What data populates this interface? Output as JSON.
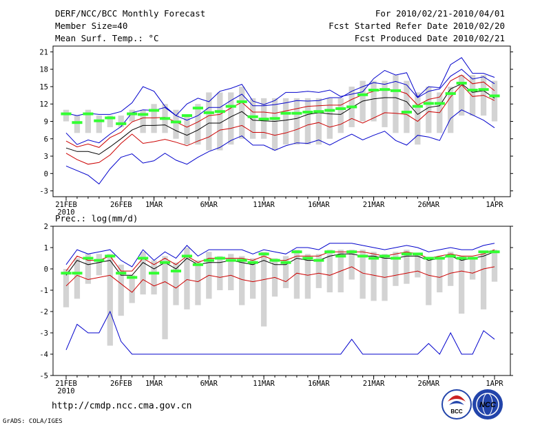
{
  "header": {
    "title": "DERF/NCC/BCC Monthly Forecast",
    "member_size": "Member Size=40",
    "variable": "Mean Surf. Temp.: °C",
    "forecast_for": "For 2010/02/21-2010/04/01",
    "started_refer": "Fcst Started Refer Date 2010/02/20",
    "produced": "Fcst Produced Date 2010/02/21"
  },
  "footer": {
    "url": "http://cmdp.ncc.cma.gov.cn",
    "credit": "GrADS: COLA/IGES",
    "logo_bcc": "BCC",
    "logo_ncc": "NCC"
  },
  "colors": {
    "box": "#d3d3d3",
    "obs": "#33ff33",
    "mean": "#000000",
    "inner": "#cc0000",
    "outer": "#0000cc",
    "frame": "#000000",
    "logo_red": "#cc2222",
    "logo_blue": "#2244aa"
  },
  "chart_data": [
    {
      "type": "box-line",
      "title": "Mean Surf. Temp.: °C",
      "ylim": [
        -4,
        22
      ],
      "yticks": [
        -3,
        0,
        3,
        6,
        9,
        12,
        15,
        18,
        21
      ],
      "x_ticks": [
        {
          "day": 0,
          "label": "21FEB",
          "sub": "2010"
        },
        {
          "day": 5,
          "label": "26FEB"
        },
        {
          "day": 8,
          "label": "1MAR"
        },
        {
          "day": 13,
          "label": "6MAR"
        },
        {
          "day": 18,
          "label": "11MAR"
        },
        {
          "day": 23,
          "label": "16MAR"
        },
        {
          "day": 28,
          "label": "21MAR"
        },
        {
          "day": 33,
          "label": "26MAR"
        },
        {
          "day": 39,
          "label": "1APR"
        }
      ],
      "days": 40,
      "series": [
        {
          "name": "max",
          "role": "outer",
          "values": [
            1.3,
            0.5,
            -0.3,
            -1.8,
            0.8,
            2.8,
            3.4,
            1.8,
            2.2,
            3.5,
            2.3,
            1.6,
            2.8,
            3.8,
            4.5,
            5.7,
            6.5,
            4.9,
            4.9,
            4.0,
            4.8,
            5.3,
            5.2,
            5.8,
            4.9,
            5.9,
            6.8,
            5.8,
            6.6,
            7.3,
            5.7,
            4.9,
            6.6,
            6.3,
            5.7,
            9.5,
            11.0,
            10.1,
            9.2,
            7.9
          ]
        },
        {
          "name": "p25",
          "role": "inner",
          "values": [
            3.5,
            2.4,
            1.6,
            1.9,
            3.2,
            5.2,
            6.8,
            5.2,
            5.5,
            5.9,
            5.4,
            4.8,
            5.6,
            6.3,
            7.5,
            7.8,
            8.3,
            7.1,
            7.1,
            6.6,
            7.0,
            7.6,
            8.4,
            8.8,
            8.0,
            8.5,
            9.5,
            8.7,
            9.6,
            10.5,
            10.4,
            10.2,
            9.0,
            10.7,
            10.5,
            13.2,
            15.3,
            13.3,
            13.5,
            12.6
          ]
        },
        {
          "name": "mean",
          "role": "mean",
          "values": [
            4.4,
            3.8,
            3.8,
            3.3,
            4.6,
            6.0,
            7.5,
            8.3,
            8.3,
            8.4,
            7.4,
            6.6,
            7.5,
            8.7,
            8.7,
            9.8,
            10.7,
            9.2,
            9.1,
            9.0,
            9.2,
            9.5,
            10.2,
            10.5,
            10.3,
            10.2,
            11.4,
            12.5,
            12.9,
            13.1,
            13.1,
            12.4,
            10.2,
            11.4,
            11.7,
            14.6,
            15.5,
            14.0,
            14.3,
            13.0
          ]
        },
        {
          "name": "p75",
          "role": "inner",
          "values": [
            5.6,
            4.6,
            5.1,
            4.5,
            6.2,
            7.1,
            8.9,
            9.6,
            9.6,
            9.7,
            8.9,
            8.0,
            8.9,
            10.0,
            10.2,
            11.3,
            12.3,
            10.6,
            10.6,
            10.4,
            10.8,
            11.2,
            11.6,
            11.7,
            11.8,
            11.8,
            12.8,
            13.6,
            14.2,
            14.5,
            14.4,
            13.8,
            11.8,
            12.8,
            13.2,
            16.0,
            17.0,
            15.5,
            15.8,
            14.3
          ]
        },
        {
          "name": "min",
          "role": "outer",
          "values": [
            7.0,
            5.0,
            5.8,
            5.3,
            6.8,
            8.1,
            10.5,
            11.0,
            10.9,
            11.4,
            10.0,
            9.2,
            10.0,
            11.4,
            11.4,
            12.6,
            13.7,
            11.7,
            11.7,
            11.9,
            12.2,
            12.6,
            12.5,
            12.6,
            13.1,
            13.1,
            14.2,
            15.0,
            15.7,
            15.4,
            15.9,
            15.3,
            13.1,
            14.2,
            14.6,
            16.8,
            18.0,
            16.3,
            16.7,
            15.5
          ]
        },
        {
          "name": "top",
          "role": "outer",
          "values": [
            10.4,
            10.0,
            10.4,
            10.2,
            10.2,
            10.7,
            12.2,
            15.0,
            14.2,
            11.6,
            10.0,
            12.0,
            13.0,
            12.4,
            14.2,
            14.7,
            15.4,
            12.5,
            11.9,
            12.6,
            14.0,
            14.0,
            14.2,
            14.0,
            14.4,
            13.3,
            13.7,
            14.1,
            16.4,
            17.8,
            17.0,
            17.4,
            13.2,
            15.0,
            14.8,
            18.8,
            20.0,
            17.3,
            17.3,
            16.6
          ]
        }
      ],
      "boxes": [
        [
          9,
          11
        ],
        [
          7,
          10
        ],
        [
          7,
          11
        ],
        [
          7,
          10
        ],
        [
          8,
          10
        ],
        [
          8,
          10
        ],
        [
          9,
          11
        ],
        [
          7,
          11
        ],
        [
          7,
          12
        ],
        [
          7,
          12
        ],
        [
          6,
          11
        ],
        [
          5,
          10
        ],
        [
          5,
          12
        ],
        [
          4,
          14
        ],
        [
          4,
          14
        ],
        [
          5,
          14
        ],
        [
          6,
          15
        ],
        [
          6,
          13
        ],
        [
          6,
          13
        ],
        [
          4,
          13
        ],
        [
          5,
          13
        ],
        [
          5,
          13
        ],
        [
          5,
          13
        ],
        [
          5,
          13
        ],
        [
          6,
          13
        ],
        [
          7,
          13
        ],
        [
          8,
          15
        ],
        [
          9,
          16
        ],
        [
          9,
          16
        ],
        [
          8,
          16
        ],
        [
          7,
          17
        ],
        [
          7,
          16
        ],
        [
          5,
          14
        ],
        [
          7,
          15
        ],
        [
          7,
          14
        ],
        [
          7,
          15
        ],
        [
          10,
          17
        ],
        [
          10,
          17
        ],
        [
          10,
          17
        ],
        [
          9,
          16
        ]
      ],
      "observed": [
        10.3,
        8.8,
        10.3,
        9.1,
        9.6,
        8.6,
        10.3,
        10.2,
        10.9,
        9.5,
        8.9,
        10.0,
        11.3,
        10.5,
        10.7,
        11.6,
        12.4,
        9.8,
        9.4,
        9.5,
        10.4,
        10.4,
        10.6,
        10.7,
        10.9,
        11.2,
        11.5,
        13.6,
        14.4,
        14.5,
        14.3,
        10.6,
        11.6,
        12.1,
        12.1,
        13.8,
        15.6,
        14.4,
        14.5,
        13.4
      ]
    },
    {
      "type": "box-line",
      "title": "Prec.: log(mm/d)",
      "ylim": [
        -5,
        2
      ],
      "yticks": [
        -5,
        -4,
        -3,
        -2,
        -1,
        0,
        1,
        2
      ],
      "x_ticks": [
        {
          "day": 0,
          "label": "21FEB",
          "sub": "2010"
        },
        {
          "day": 5,
          "label": "26FEB"
        },
        {
          "day": 8,
          "label": "1MAR"
        },
        {
          "day": 13,
          "label": "6MAR"
        },
        {
          "day": 18,
          "label": "11MAR"
        },
        {
          "day": 23,
          "label": "16MAR"
        },
        {
          "day": 28,
          "label": "21MAR"
        },
        {
          "day": 33,
          "label": "26MAR"
        },
        {
          "day": 39,
          "label": "1APR"
        }
      ],
      "days": 40,
      "series": [
        {
          "name": "min",
          "role": "outer",
          "values": [
            -3.8,
            -2.6,
            -3.0,
            -3.0,
            -2.0,
            -3.4,
            -4.0,
            -4.0,
            -4.0,
            -4.0,
            -4.0,
            -4.0,
            -4.0,
            -4.0,
            -4.0,
            -4.0,
            -4.0,
            -4.0,
            -4.0,
            -4.0,
            -4.0,
            -4.0,
            -4.0,
            -4.0,
            -4.0,
            -4.0,
            -3.3,
            -4.0,
            -4.0,
            -4.0,
            -4.0,
            -4.0,
            -4.0,
            -3.5,
            -4.0,
            -3.0,
            -4.0,
            -4.0,
            -2.9,
            -3.3
          ]
        },
        {
          "name": "p25",
          "role": "inner",
          "values": [
            -0.8,
            -0.3,
            -0.5,
            -0.4,
            -0.3,
            -0.7,
            -1.1,
            -0.5,
            -0.8,
            -0.6,
            -0.9,
            -0.5,
            -0.6,
            -0.3,
            -0.4,
            -0.3,
            -0.5,
            -0.6,
            -0.5,
            -0.4,
            -0.6,
            -0.2,
            -0.3,
            -0.2,
            -0.3,
            -0.1,
            0.1,
            -0.2,
            -0.3,
            -0.4,
            -0.3,
            -0.2,
            -0.1,
            -0.3,
            -0.4,
            -0.2,
            -0.1,
            -0.2,
            0.0,
            0.1
          ]
        },
        {
          "name": "mean",
          "role": "mean",
          "values": [
            -0.3,
            0.4,
            0.2,
            0.3,
            0.4,
            -0.3,
            -0.3,
            0.3,
            0.0,
            0.3,
            0.0,
            0.5,
            0.2,
            0.3,
            0.3,
            0.4,
            0.3,
            0.2,
            0.4,
            0.2,
            0.2,
            0.5,
            0.4,
            0.4,
            0.6,
            0.7,
            0.7,
            0.6,
            0.6,
            0.5,
            0.5,
            0.6,
            0.6,
            0.4,
            0.5,
            0.6,
            0.4,
            0.5,
            0.6,
            0.8
          ]
        },
        {
          "name": "p75",
          "role": "inner",
          "values": [
            -0.1,
            0.6,
            0.4,
            0.4,
            0.6,
            -0.1,
            -0.1,
            0.5,
            0.2,
            0.5,
            0.2,
            0.6,
            0.3,
            0.5,
            0.5,
            0.5,
            0.5,
            0.4,
            0.6,
            0.4,
            0.4,
            0.6,
            0.6,
            0.6,
            0.8,
            0.8,
            0.8,
            0.8,
            0.7,
            0.6,
            0.7,
            0.8,
            0.7,
            0.5,
            0.6,
            0.7,
            0.6,
            0.6,
            0.7,
            0.9
          ]
        },
        {
          "name": "max",
          "role": "outer",
          "values": [
            0.2,
            0.9,
            0.7,
            0.8,
            0.9,
            0.4,
            0.1,
            0.9,
            0.4,
            0.8,
            0.5,
            1.1,
            0.6,
            0.9,
            0.9,
            0.9,
            0.9,
            0.7,
            0.9,
            0.8,
            0.7,
            1.0,
            1.0,
            0.9,
            1.2,
            1.2,
            1.2,
            1.1,
            1.0,
            0.9,
            1.0,
            1.1,
            1.0,
            0.8,
            0.9,
            1.0,
            0.9,
            0.9,
            1.1,
            1.2
          ]
        }
      ],
      "boxes": [
        [
          -1.8,
          0.0
        ],
        [
          -1.4,
          0.5
        ],
        [
          -0.7,
          0.7
        ],
        [
          -0.3,
          0.7
        ],
        [
          -3.6,
          0.7
        ],
        [
          -2.2,
          0.2
        ],
        [
          -1.6,
          -0.3
        ],
        [
          -1.2,
          0.8
        ],
        [
          -1.2,
          0.4
        ],
        [
          -3.3,
          0.6
        ],
        [
          -1.7,
          0.3
        ],
        [
          -1.9,
          1.0
        ],
        [
          -1.7,
          0.4
        ],
        [
          -1.4,
          0.8
        ],
        [
          -1.0,
          0.6
        ],
        [
          -1.0,
          0.7
        ],
        [
          -1.7,
          0.6
        ],
        [
          -1.4,
          0.5
        ],
        [
          -2.7,
          0.8
        ],
        [
          -1.3,
          0.5
        ],
        [
          -0.9,
          0.6
        ],
        [
          -1.4,
          0.9
        ],
        [
          -1.4,
          0.7
        ],
        [
          -0.9,
          0.7
        ],
        [
          -1.1,
          0.9
        ],
        [
          -1.1,
          0.9
        ],
        [
          -0.5,
          0.9
        ],
        [
          -1.4,
          0.9
        ],
        [
          -1.5,
          0.8
        ],
        [
          -1.5,
          0.7
        ],
        [
          -0.8,
          0.8
        ],
        [
          -0.7,
          0.9
        ],
        [
          -0.4,
          0.7
        ],
        [
          -1.7,
          0.4
        ],
        [
          -1.1,
          0.6
        ],
        [
          -0.8,
          0.8
        ],
        [
          -2.1,
          0.6
        ],
        [
          -0.5,
          0.5
        ],
        [
          -1.9,
          0.8
        ],
        [
          -0.6,
          0.9
        ]
      ],
      "observed": [
        -0.2,
        -0.2,
        0.5,
        0.4,
        0.6,
        -0.2,
        -0.4,
        0.5,
        -0.2,
        0.3,
        -0.1,
        0.6,
        0.2,
        0.4,
        0.5,
        0.4,
        0.4,
        0.3,
        0.7,
        0.4,
        0.3,
        0.8,
        0.5,
        0.4,
        0.8,
        0.6,
        0.8,
        0.6,
        0.5,
        0.6,
        0.5,
        0.7,
        0.7,
        0.5,
        0.5,
        0.6,
        0.5,
        0.5,
        0.8,
        0.8
      ]
    }
  ]
}
